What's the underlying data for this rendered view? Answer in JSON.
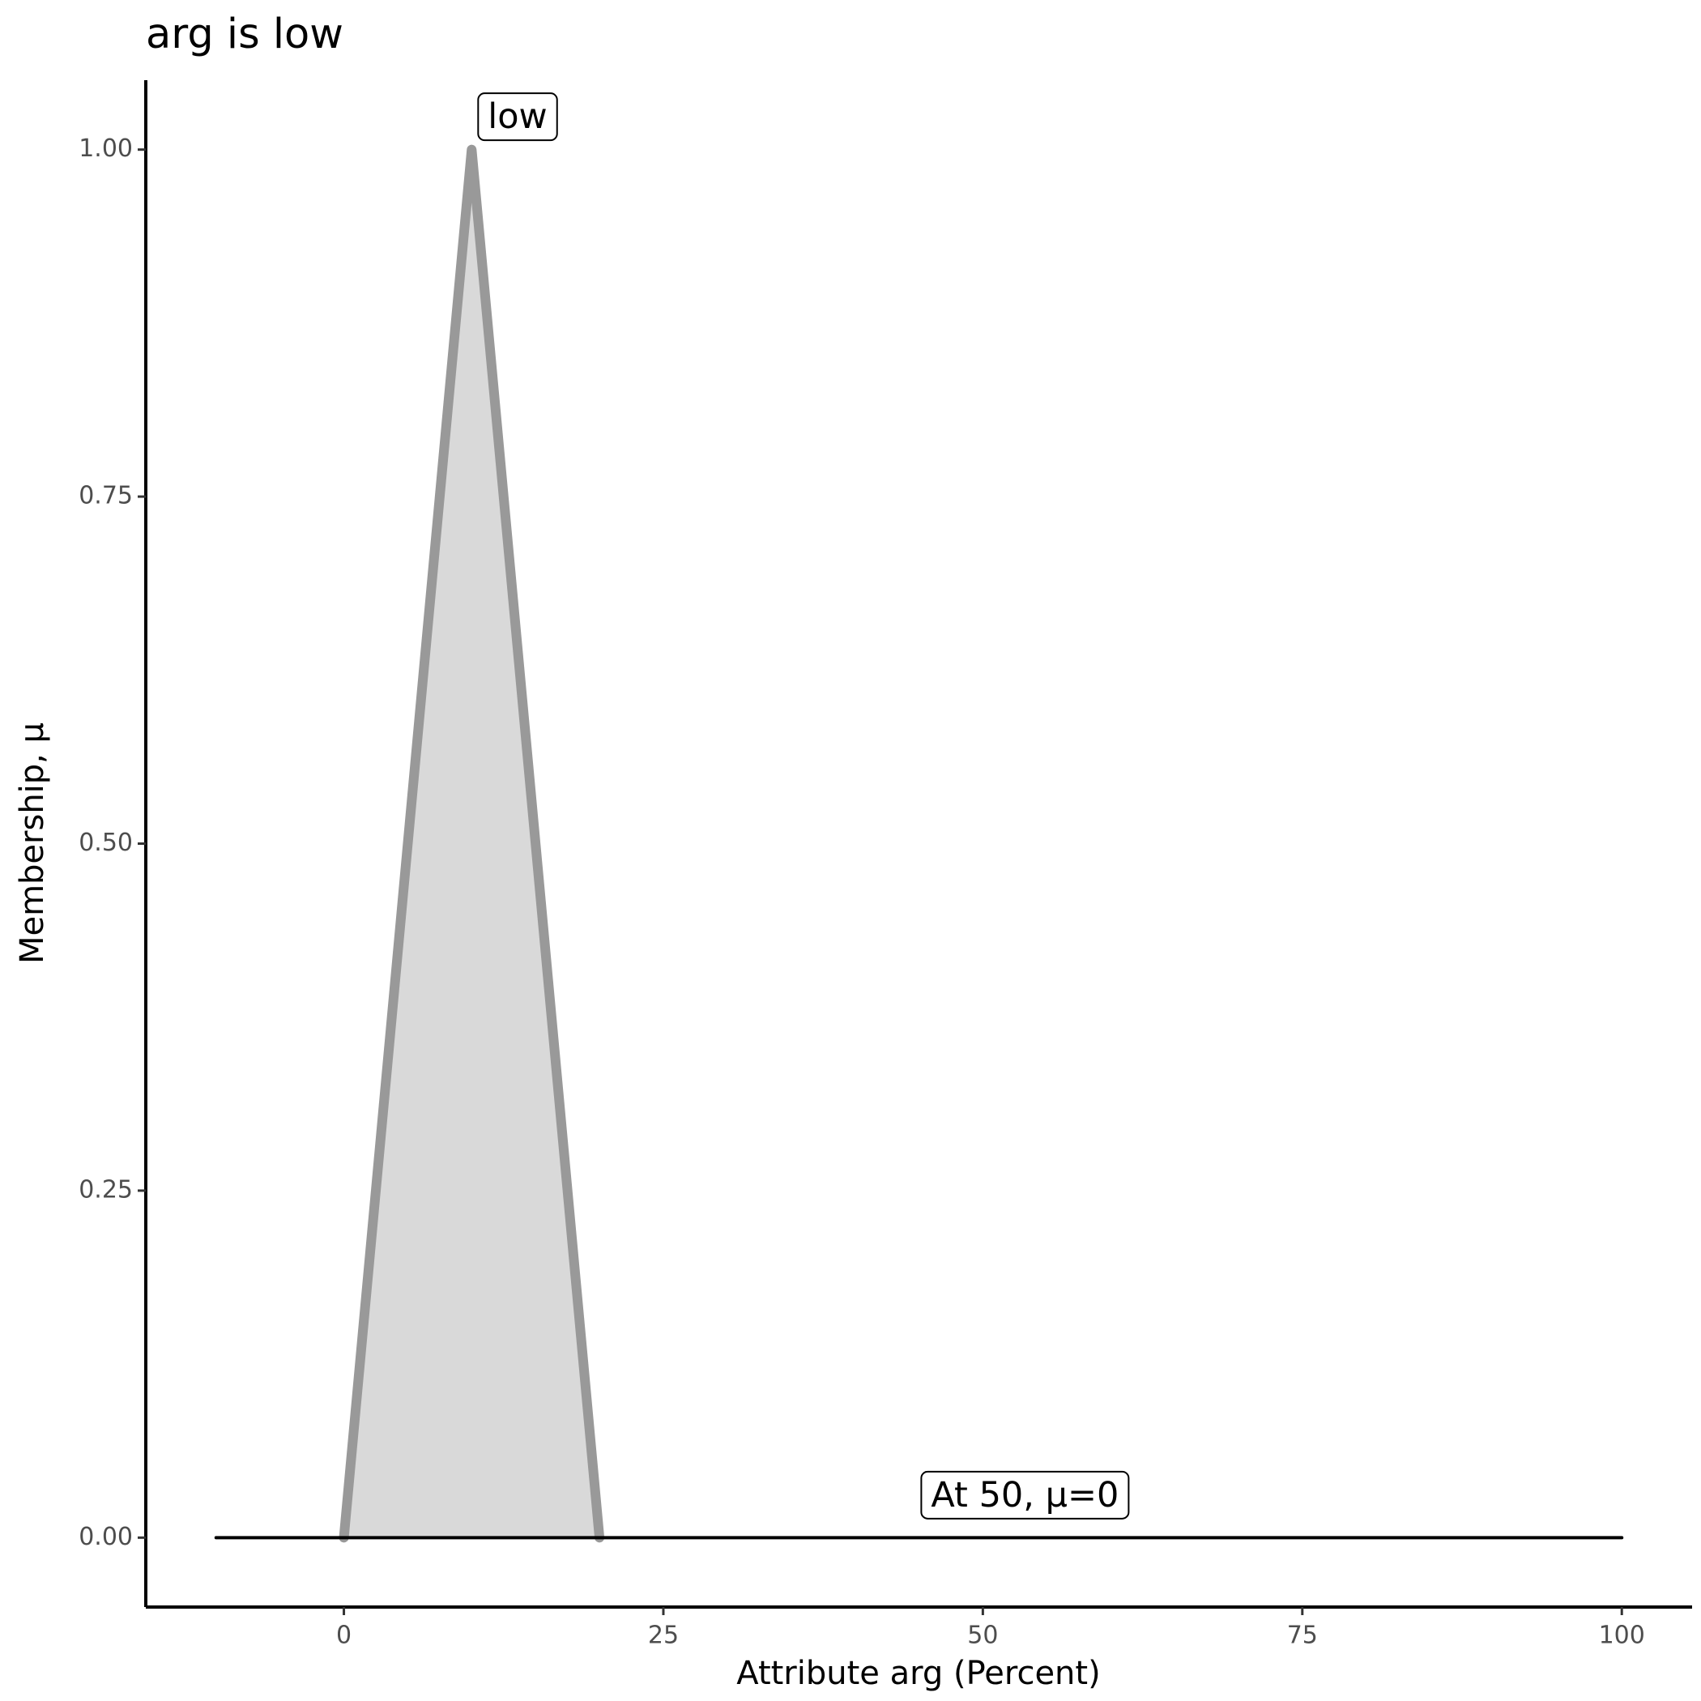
{
  "chart_data": {
    "type": "line",
    "title": "arg is low",
    "x_label": "Attribute arg (Percent)",
    "y_label": "Membership, μ",
    "xlim": [
      -15.5,
      105.5
    ],
    "ylim": [
      -0.05,
      1.05
    ],
    "xticks": [
      0,
      25,
      50,
      75,
      100
    ],
    "yticks": [
      {
        "value": 0,
        "label": "0.00"
      },
      {
        "value": 0.25,
        "label": "0.25"
      },
      {
        "value": 0.5,
        "label": "0.50"
      },
      {
        "value": 0.75,
        "label": "0.75"
      },
      {
        "value": 1,
        "label": "1.00"
      }
    ],
    "series": [
      {
        "color": "#999999",
        "fill": "#d9d9d9",
        "x": [
          0,
          10,
          20
        ],
        "values": [
          0,
          1,
          0
        ]
      },
      {
        "color": "#000000",
        "x": [
          -10,
          100
        ],
        "values": [
          0,
          0
        ]
      }
    ],
    "annotations": [
      {
        "text": "low",
        "x": 10,
        "y": 1
      },
      {
        "text": "At 50, μ=0",
        "x": 50,
        "y": 0
      }
    ]
  }
}
